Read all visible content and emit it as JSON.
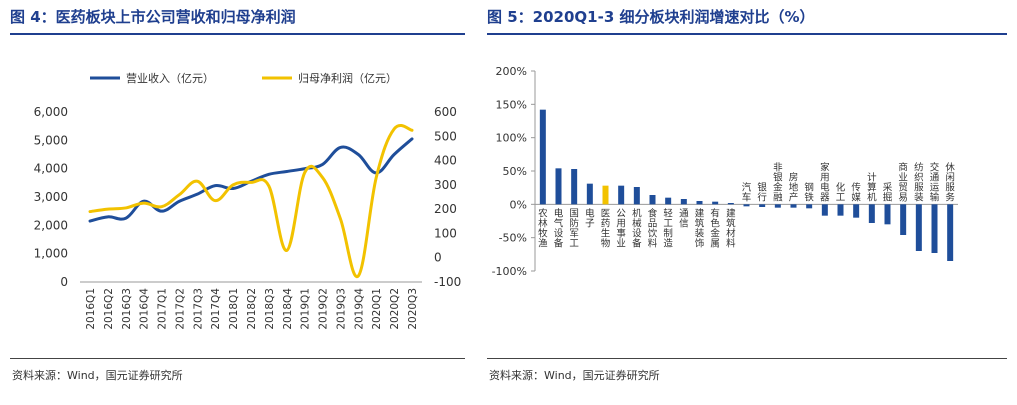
{
  "left": {
    "title": "图 4：医药板块上市公司营收和归母净利润",
    "source": "资料来源：Wind，国元证券研究所",
    "chart_data": {
      "type": "line",
      "categories": [
        "2016Q1",
        "2016Q2",
        "2016Q3",
        "2016Q4",
        "2017Q1",
        "2017Q2",
        "2017Q3",
        "2017Q4",
        "2018Q1",
        "2018Q2",
        "2018Q3",
        "2018Q4",
        "2019Q1",
        "2019Q2",
        "2019Q3",
        "2019Q4",
        "2020Q1",
        "2020Q2",
        "2020Q3"
      ],
      "series": [
        {
          "name": "营业收入（亿元）",
          "axis": "left",
          "color": "#1f4e9a",
          "values": [
            2150,
            2300,
            2250,
            2850,
            2500,
            2850,
            3100,
            3400,
            3300,
            3550,
            3800,
            3900,
            4000,
            4150,
            4750,
            4500,
            3850,
            4500,
            5050
          ]
        },
        {
          "name": "归母净利润（亿元）",
          "axis": "right",
          "color": "#f2c200",
          "values": [
            190,
            200,
            205,
            225,
            210,
            260,
            315,
            235,
            300,
            310,
            295,
            30,
            350,
            330,
            160,
            -75,
            330,
            530,
            525
          ]
        }
      ],
      "y_left": {
        "min": 0,
        "max": 6000,
        "ticks": [
          "0",
          "1,000",
          "2,000",
          "3,000",
          "4,000",
          "5,000",
          "6,000"
        ]
      },
      "y_right": {
        "min": -100,
        "max": 600,
        "ticks": [
          "-100",
          "0",
          "100",
          "200",
          "300",
          "400",
          "500",
          "600"
        ]
      },
      "legend_position": "top"
    }
  },
  "right": {
    "title": "图 5：2020Q1-3 细分板块利润增速对比（%）",
    "source": "资料来源：Wind，国元证券研究所",
    "chart_data": {
      "type": "bar",
      "categories": [
        "农林牧渔",
        "电气设备",
        "国防军工",
        "电子",
        "医药生物",
        "公用事业",
        "机械设备",
        "食品饮料",
        "轻工制造",
        "通信",
        "建筑装饰",
        "有色金属",
        "建筑材料",
        "汽车",
        "银行",
        "非银金融",
        "房地产",
        "钢铁",
        "家用电器",
        "化工",
        "传媒",
        "计算机",
        "采掘",
        "商业贸易",
        "纺织服装",
        "交通运输",
        "休闲服务"
      ],
      "values": [
        142,
        54,
        53,
        31,
        28,
        28,
        26,
        14,
        10,
        8,
        5,
        4,
        2,
        -3,
        -4,
        -5,
        -5,
        -6,
        -17,
        -17,
        -20,
        -28,
        -30,
        -46,
        -70,
        -73,
        -85
      ],
      "bar_color": "#1f4e9a",
      "highlight_index": 4,
      "highlight_color": "#f2c200",
      "ylim": [
        -100,
        200
      ],
      "ticks": [
        "-100%",
        "-50%",
        "0%",
        "50%",
        "100%",
        "150%",
        "200%"
      ]
    }
  }
}
